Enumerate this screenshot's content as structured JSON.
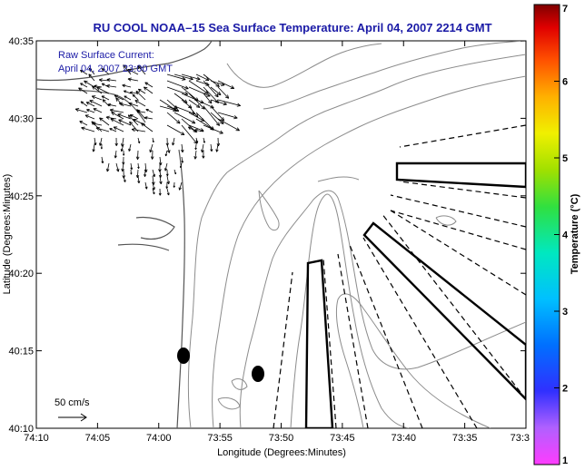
{
  "title": "RU COOL  NOAA–15  Sea Surface Temperature:  April 04, 2007 2214 GMT",
  "annotation": {
    "line1": "Raw Surface Current:",
    "line2": "April 04, 2007 23:00 GMT"
  },
  "scale_label": "50 cm/s",
  "axes": {
    "xlabel": "Longitude (Degrees:Minutes)",
    "ylabel": "Latitude (Degrees:Minutes)",
    "x_ticks": [
      "74:10",
      "74:05",
      "74:00",
      "73:55",
      "73:50",
      "73:45",
      "73:40",
      "73:35",
      "73:3"
    ],
    "y_ticks": [
      "40:35",
      "40:30",
      "40:25",
      "40:20",
      "40:15",
      "40:10"
    ]
  },
  "colorbar": {
    "label": "Temperature (°C)",
    "ticks": [
      "7",
      "6",
      "5",
      "4",
      "3",
      "2",
      "1"
    ]
  },
  "colors": {
    "title": "#1a1aa6",
    "contour": "#8c8c8c",
    "coast": "#555555",
    "annotation": "#1a1aa6"
  }
}
